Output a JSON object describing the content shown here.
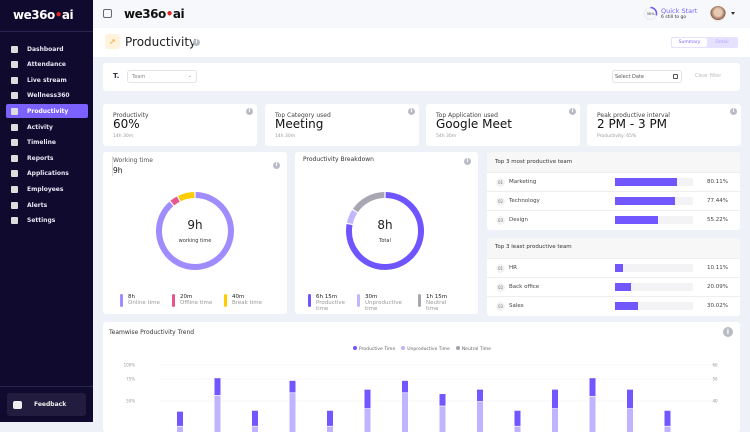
{
  "brand": {
    "logo_left": "we36",
    "logo_o": "o",
    "logo_dot": "•",
    "logo_right": "ai"
  },
  "sidebar": {
    "items": [
      {
        "label": "Dashboard",
        "icon": "grid-icon"
      },
      {
        "label": "Attendance",
        "icon": "users-icon"
      },
      {
        "label": "Live stream",
        "icon": "broadcast-icon"
      },
      {
        "label": "Wellness360",
        "icon": "wellness-icon"
      },
      {
        "label": "Productivity",
        "icon": "rocket-icon",
        "active": true
      },
      {
        "label": "Activity",
        "icon": "pie-icon"
      },
      {
        "label": "Timeline",
        "icon": "timeline-icon"
      },
      {
        "label": "Reports",
        "icon": "reports-icon"
      },
      {
        "label": "Applications",
        "icon": "applications-icon"
      },
      {
        "label": "Employees",
        "icon": "employees-icon"
      },
      {
        "label": "Alerts",
        "icon": "bell-icon"
      },
      {
        "label": "Settings",
        "icon": "gear-icon"
      }
    ],
    "feedback": "Feedback"
  },
  "header": {
    "quick_start": "Quick Start",
    "quick_start_sub": "6 still to go",
    "progress_label": "30%",
    "progress": 30
  },
  "page": {
    "title": "Productivity",
    "toggle": [
      "Summary",
      "Detail"
    ],
    "active_toggle": "Summary"
  },
  "filters": {
    "team_placeholder": "Team",
    "date_placeholder": "Select Date",
    "clear": "Clear filter"
  },
  "kpis": [
    {
      "label": "Productivity",
      "value": "60%",
      "sub": "14h 30m"
    },
    {
      "label": "Top Category used",
      "value": "Meeting",
      "sub": "14h 30m"
    },
    {
      "label": "Top Application used",
      "value": "Google Meet",
      "sub": "54h 30m"
    },
    {
      "label": "Peak productive interval",
      "value": "2 PM - 3 PM",
      "sub": "Productivity: 65%"
    }
  ],
  "working_time": {
    "title": "Working time",
    "value": "9h",
    "center": "9h",
    "center_label": "working time",
    "legend": [
      {
        "value": "8h",
        "label": "Online time",
        "color": "#a08cff",
        "minutes": 480
      },
      {
        "value": "20m",
        "label": "Offline time",
        "color": "#e8558f",
        "minutes": 20
      },
      {
        "value": "40m",
        "label": "Break time",
        "color": "#ffcc00",
        "minutes": 40
      }
    ]
  },
  "breakdown": {
    "title": "Productivity Breakdown",
    "center": "8h",
    "center_label": "Total",
    "legend": [
      {
        "value": "6h 15m",
        "label": "Productive time",
        "color": "#6e55ff",
        "minutes": 375
      },
      {
        "value": "30m",
        "label": "Unproductive time",
        "color": "#c2b6ff",
        "minutes": 30
      },
      {
        "value": "1h 15m",
        "label": "Neutral time",
        "color": "#a9a6b3",
        "minutes": 75
      }
    ]
  },
  "most_productive": {
    "title": "Top 3 most productive team",
    "rows": [
      {
        "rank": "01",
        "name": "Marketing",
        "pct": "80.11%",
        "value": 80.11
      },
      {
        "rank": "02",
        "name": "Technology",
        "pct": "77.44%",
        "value": 77.44
      },
      {
        "rank": "03",
        "name": "Design",
        "pct": "55.22%",
        "value": 55.22
      }
    ]
  },
  "least_productive": {
    "title": "Top 3 least productive team",
    "rows": [
      {
        "rank": "01",
        "name": "HR",
        "pct": "10.11%",
        "value": 10.11
      },
      {
        "rank": "02",
        "name": "Back office",
        "pct": "20.09%",
        "value": 20.09
      },
      {
        "rank": "03",
        "name": "Sales",
        "pct": "30.02%",
        "value": 30.02
      }
    ]
  },
  "chart_data": {
    "type": "bar",
    "stacked": true,
    "title": "Teamwise Productivity Trend",
    "legend_position": "top",
    "series": [
      {
        "name": "Productive Time",
        "color": "#7157ff",
        "values": [
          47,
          85,
          48,
          82,
          48,
          72,
          82,
          67,
          72,
          48,
          72,
          85,
          72,
          48
        ]
      },
      {
        "name": "Unproductive Time",
        "color": "#c0b3ff",
        "values": [
          30,
          65,
          30,
          68,
          30,
          50,
          68,
          53,
          58,
          30,
          50,
          64,
          50,
          30
        ]
      },
      {
        "name": "Neutral Time",
        "color": "#a3a1ad",
        "values": []
      }
    ],
    "y_ticks_left": [
      "100%",
      "75%",
      "50%"
    ],
    "y_ticks_right": [
      "60",
      "50",
      "40"
    ],
    "ylim": [
      0,
      100
    ],
    "grid": true
  }
}
